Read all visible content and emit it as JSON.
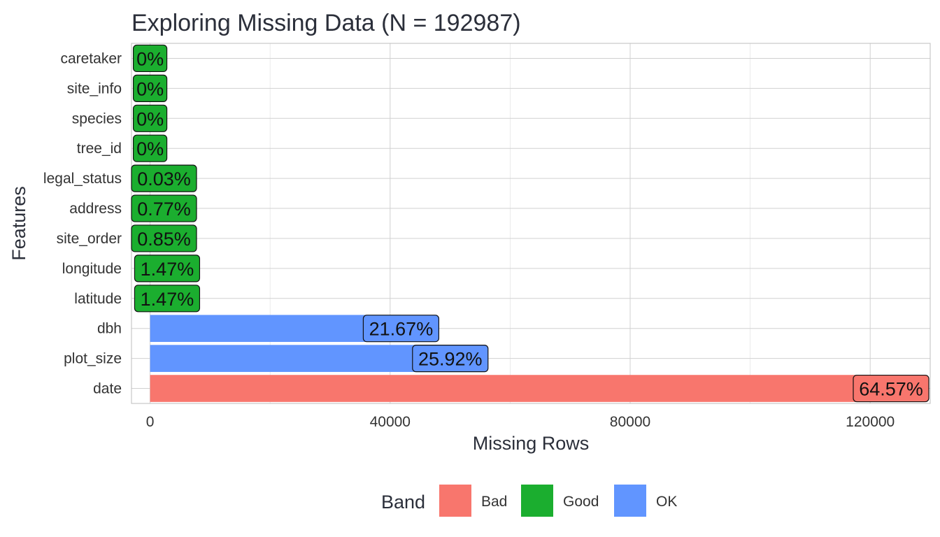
{
  "chart_data": {
    "type": "bar",
    "orientation": "horizontal",
    "title": "Exploring Missing Data (N = 192987)",
    "xlabel": "Missing Rows",
    "ylabel": "Features",
    "xlim": [
      -3100,
      130000
    ],
    "x_ticks": [
      0,
      40000,
      80000,
      120000
    ],
    "x_tick_labels": [
      "0",
      "40000",
      "80000",
      "120000"
    ],
    "grid": true,
    "legend": {
      "title": "Band",
      "position": "bottom",
      "items": [
        {
          "name": "Bad",
          "color": "#F8766D"
        },
        {
          "name": "Good",
          "color": "#1BAE2F"
        },
        {
          "name": "OK",
          "color": "#6195FF"
        }
      ]
    },
    "band_colors": {
      "Bad": "#F8766D",
      "Good": "#1BAE2F",
      "OK": "#6195FF"
    },
    "categories": [
      "caretaker",
      "site_info",
      "species",
      "tree_id",
      "legal_status",
      "address",
      "site_order",
      "longitude",
      "latitude",
      "dbh",
      "plot_size",
      "date"
    ],
    "values": [
      0,
      0,
      0,
      0,
      58,
      1486,
      1640,
      2837,
      2837,
      41820,
      50022,
      124612
    ],
    "labels": [
      "0%",
      "0%",
      "0%",
      "0%",
      "0.03%",
      "0.77%",
      "0.85%",
      "1.47%",
      "1.47%",
      "21.67%",
      "25.92%",
      "64.57%"
    ],
    "bands": [
      "Good",
      "Good",
      "Good",
      "Good",
      "Good",
      "Good",
      "Good",
      "Good",
      "Good",
      "OK",
      "OK",
      "Bad"
    ]
  }
}
